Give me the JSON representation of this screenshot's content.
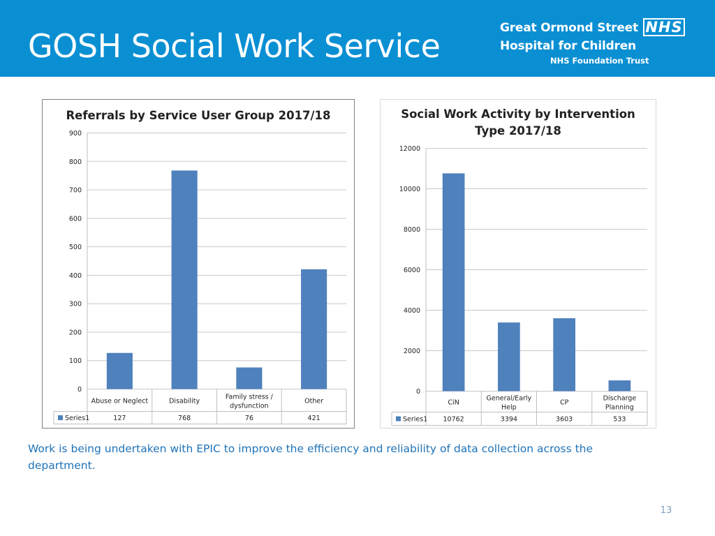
{
  "slide": {
    "title": "GOSH Social Work Service",
    "logo": {
      "line1": "Great Ormond Street",
      "badge": "NHS",
      "line2": "Hospital for Children",
      "line3": "NHS Foundation Trust"
    },
    "body_text": "Work is being undertaken with EPIC to improve the efficiency and reliability of data collection across the department.",
    "page_number": "13",
    "colors": {
      "header": "#0a8fd3",
      "bar": "#4f81bd",
      "body_text": "#1f73b8"
    }
  },
  "chart_data": [
    {
      "type": "bar",
      "title": "Referrals by Service User Group 2017/18",
      "categories": [
        "Abuse or Neglect",
        "Disability",
        "Family stress / dysfunction",
        "Other"
      ],
      "series": [
        {
          "name": "Series1",
          "values": [
            127,
            768,
            76,
            421
          ]
        }
      ],
      "data_labels": [
        "127",
        "768",
        "76",
        "421"
      ],
      "ylim": [
        0,
        900
      ],
      "yticks": [
        0,
        100,
        200,
        300,
        400,
        500,
        600,
        700,
        800,
        900
      ],
      "grid": true,
      "legend": "data-table"
    },
    {
      "type": "bar",
      "title": "Social Work Activity by Intervention Type 2017/18",
      "categories": [
        "CiN",
        "General/Early Help",
        "CP",
        "Discharge Planning"
      ],
      "series": [
        {
          "name": "Series1",
          "values": [
            10762,
            3394,
            3603,
            533
          ]
        }
      ],
      "data_labels": [
        "10762",
        "3394",
        "3603",
        "533"
      ],
      "ylim": [
        0,
        12000
      ],
      "yticks": [
        0,
        2000,
        4000,
        6000,
        8000,
        10000,
        12000
      ],
      "grid": true,
      "legend": "data-table"
    }
  ]
}
